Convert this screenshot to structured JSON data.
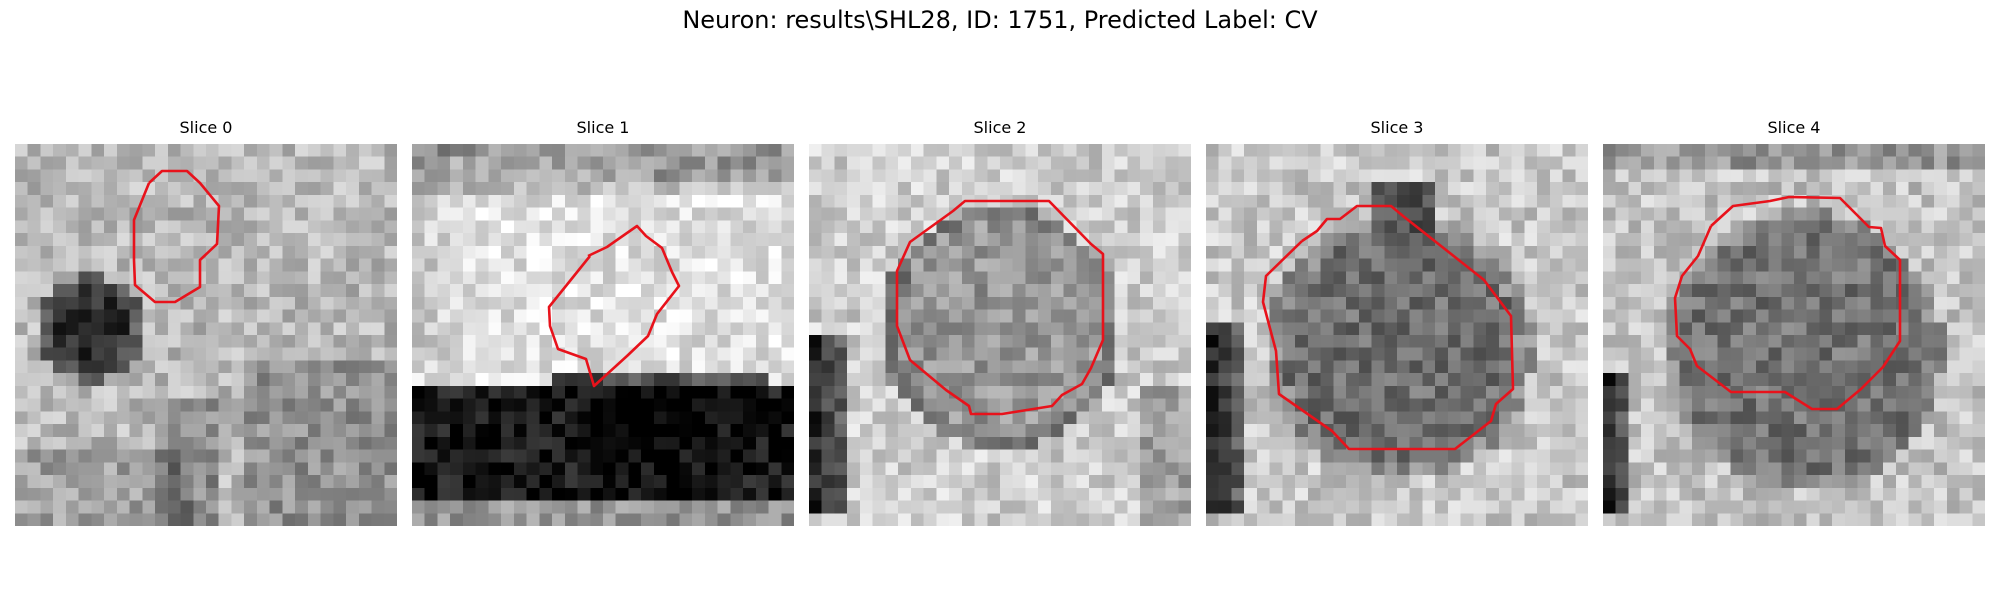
{
  "figure": {
    "title": "Neuron: results\\SHL28, ID: 1751, Predicted Label: CV",
    "contour_color": "#e8121b"
  },
  "slices": [
    {
      "label": "Slice 0",
      "scene": "slice0"
    },
    {
      "label": "Slice 1",
      "scene": "slice1"
    },
    {
      "label": "Slice 2",
      "scene": "slice2"
    },
    {
      "label": "Slice 3",
      "scene": "slice3"
    },
    {
      "label": "Slice 4",
      "scene": "slice4"
    }
  ]
}
